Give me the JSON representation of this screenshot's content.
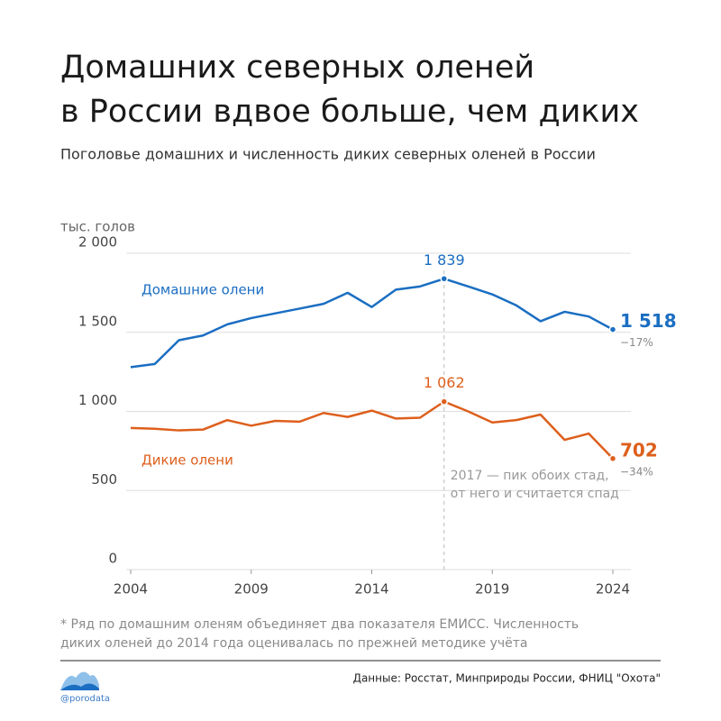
{
  "chart_data": {
    "type": "line",
    "title": [
      "Домашних северных оленей",
      "в России вдвое больше, чем диких"
    ],
    "subtitle": "Поголовье домашних и численность диких северных оленей в России",
    "y_label": "тыс. голов",
    "x": [
      2004,
      2005,
      2006,
      2007,
      2008,
      2009,
      2010,
      2011,
      2012,
      2013,
      2014,
      2015,
      2016,
      2017,
      2018,
      2019,
      2020,
      2021,
      2022,
      2023,
      2024
    ],
    "xlim": [
      2004,
      2024
    ],
    "xticks": [
      2004,
      2009,
      2014,
      2019,
      2024
    ],
    "ylim": [
      0,
      2000
    ],
    "yticks": [
      0,
      500,
      {
        "value": 1000,
        "label": "1 000"
      },
      {
        "value": 1500,
        "label": "1 500"
      },
      {
        "value": 2000,
        "label": "2 000"
      }
    ],
    "grid": true,
    "series": [
      {
        "name": "Домашние олени",
        "color": "#1b6ec2",
        "values": [
          1280,
          1300,
          1450,
          1480,
          1550,
          1590,
          1620,
          1650,
          1680,
          1750,
          1660,
          1770,
          1790,
          1839,
          1790,
          1740,
          1670,
          1570,
          1630,
          1600,
          1518
        ],
        "value_labels": [
          null,
          null,
          null,
          null,
          null,
          null,
          null,
          null,
          null,
          null,
          null,
          null,
          null,
          "1 839",
          null,
          null,
          null,
          null,
          null,
          null,
          "1 518"
        ],
        "change_label": "−17%"
      },
      {
        "name": "Дикие олени",
        "color": "#dd5f1c",
        "values": [
          895,
          890,
          880,
          885,
          945,
          910,
          940,
          935,
          990,
          965,
          1005,
          955,
          960,
          1062,
          1000,
          930,
          945,
          980,
          820,
          860,
          702
        ],
        "value_labels": [
          null,
          null,
          null,
          null,
          null,
          null,
          null,
          null,
          null,
          null,
          null,
          null,
          null,
          "1 062",
          null,
          null,
          null,
          null,
          null,
          null,
          "702"
        ],
        "change_label": "−34%"
      }
    ],
    "annotation": {
      "x": 2017,
      "text": [
        "2017 — пик обоих стад,",
        "от него и считается спад"
      ]
    },
    "footnote": [
      "* Ряд по домашним оленям объединяет два показателя ЕМИСС. Численность",
      "диких оленей до 2014 года оценивалась по прежней методике учёта"
    ],
    "source": "Данные: Росстат, Минприроды России, ФНИЦ \"Охота\"",
    "brand": "@porodata"
  }
}
